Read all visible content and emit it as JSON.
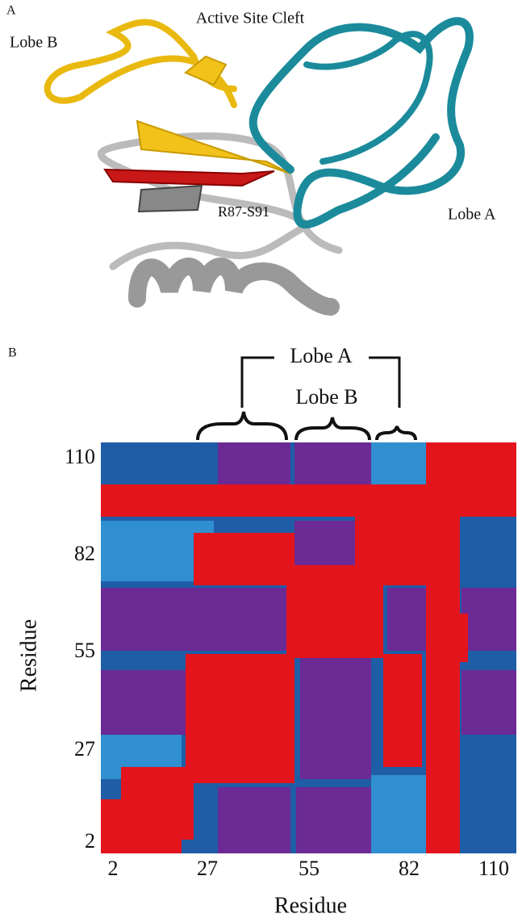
{
  "panel_a": {
    "label": "A",
    "active_site": "Active Site Cleft",
    "lobe_b": "Lobe B",
    "segment": "R87-S91",
    "lobe_a": "Lobe A"
  },
  "panel_b": {
    "label": "B",
    "bracket_lobe_a": "Lobe A",
    "bracket_lobe_b": "Lobe B",
    "y_axis": {
      "title": "Residue",
      "ticks": [
        "110",
        "82",
        "55",
        "27",
        "2"
      ]
    },
    "x_axis": {
      "title": "Residue",
      "ticks": [
        "2",
        "27",
        "55",
        "82",
        "110"
      ]
    }
  }
}
